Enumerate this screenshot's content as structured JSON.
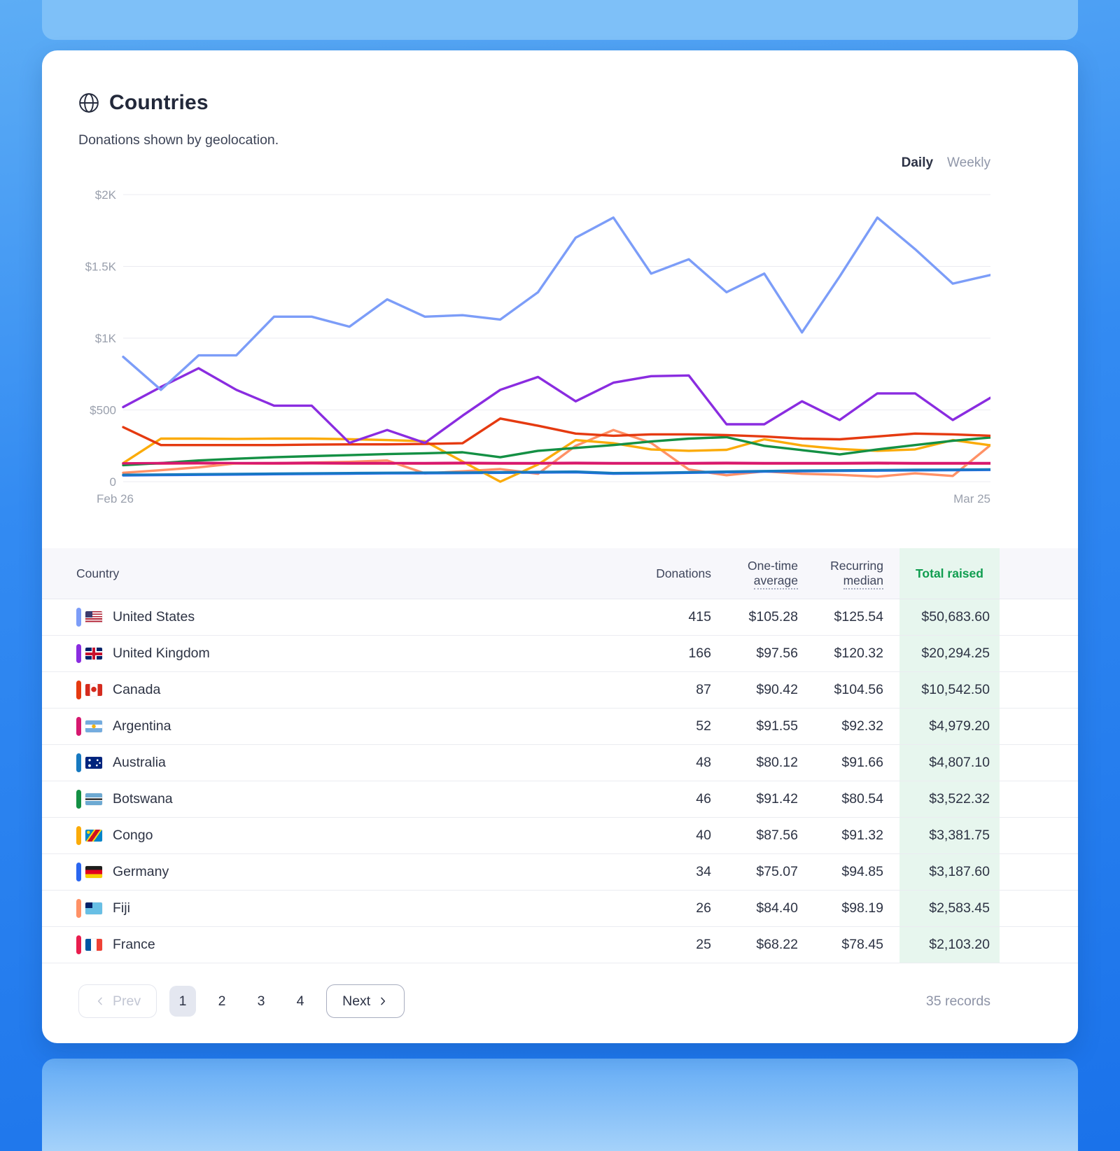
{
  "header": {
    "title": "Countries",
    "subtitle": "Donations shown by geolocation.",
    "icon": "globe-icon"
  },
  "toggle": {
    "daily": "Daily",
    "weekly": "Weekly",
    "selected": "Daily"
  },
  "chart_data": {
    "type": "line",
    "title": "Donations by country over time",
    "x_start_label": "Feb 26",
    "x_end_label": "Mar 25",
    "ymax": 2000,
    "grid": "horizontal",
    "legend_position": "none",
    "y_ticks": [
      {
        "v": 2000,
        "label": "$2K"
      },
      {
        "v": 1500,
        "label": "$1.5K"
      },
      {
        "v": 1000,
        "label": "$1K"
      },
      {
        "v": 500,
        "label": "$500"
      },
      {
        "v": 0,
        "label": "0"
      }
    ],
    "series": [
      {
        "name": "United States",
        "color": "#7c9df8",
        "values": [
          870,
          640,
          880,
          880,
          1150,
          1150,
          1080,
          1270,
          1150,
          1160,
          1130,
          1320,
          1700,
          1840,
          1450,
          1550,
          1320,
          1450,
          1040,
          1430,
          1840,
          1620,
          1380,
          1440
        ]
      },
      {
        "name": "United Kingdom",
        "color": "#8a2ce0",
        "values": [
          520,
          660,
          790,
          640,
          530,
          530,
          270,
          360,
          270,
          460,
          640,
          730,
          560,
          690,
          735,
          740,
          400,
          400,
          560,
          430,
          615,
          615,
          430,
          585
        ]
      },
      {
        "name": "Canada",
        "color": "#e53a10",
        "values": [
          380,
          255,
          255,
          255,
          255,
          258,
          260,
          260,
          263,
          268,
          440,
          390,
          335,
          320,
          330,
          330,
          325,
          315,
          300,
          295,
          315,
          335,
          330,
          320
        ]
      },
      {
        "name": "Argentina",
        "color": "#d6186f",
        "values": [
          128,
          130,
          131,
          130,
          130,
          131,
          130,
          130,
          130,
          131,
          130,
          130,
          131,
          130,
          130,
          130,
          131,
          130,
          130,
          130,
          131,
          130,
          130,
          130
        ]
      },
      {
        "name": "Australia",
        "color": "#1779c0",
        "values": [
          48,
          50,
          52,
          54,
          56,
          58,
          60,
          62,
          63,
          64,
          66,
          68,
          70,
          60,
          62,
          66,
          70,
          74,
          77,
          79,
          81,
          83,
          84,
          86
        ]
      },
      {
        "name": "Botswana",
        "color": "#149044",
        "values": [
          115,
          130,
          148,
          160,
          170,
          178,
          185,
          192,
          198,
          205,
          170,
          215,
          235,
          255,
          280,
          300,
          310,
          250,
          220,
          190,
          225,
          255,
          285,
          308
        ]
      },
      {
        "name": "Congo",
        "color": "#fbab09",
        "values": [
          130,
          300,
          300,
          298,
          300,
          300,
          296,
          290,
          282,
          140,
          0,
          120,
          290,
          268,
          225,
          215,
          222,
          295,
          252,
          228,
          215,
          225,
          290,
          253
        ]
      },
      {
        "name": "Germany",
        "color": "#2a66f0",
        "values": [
          44,
          46,
          48,
          50,
          52,
          54,
          56,
          58,
          59,
          60,
          62,
          64,
          66,
          56,
          58,
          62,
          66,
          70,
          73,
          75,
          77,
          79,
          80,
          82
        ]
      },
      {
        "name": "Fiji",
        "color": "#ff9166",
        "values": [
          62,
          80,
          100,
          128,
          130,
          133,
          138,
          148,
          58,
          72,
          88,
          55,
          250,
          360,
          270,
          85,
          45,
          72,
          55,
          48,
          35,
          58,
          40,
          255
        ]
      },
      {
        "name": "France",
        "color": "#e91d4e",
        "values": [
          125,
          127,
          128,
          127,
          127,
          128,
          127,
          127,
          127,
          128,
          127,
          127,
          128,
          127,
          127,
          127,
          128,
          127,
          127,
          127,
          128,
          127,
          127,
          127
        ]
      }
    ]
  },
  "table": {
    "columns": {
      "country": "Country",
      "donations": "Donations",
      "one_time_1": "One-time",
      "one_time_2": "average",
      "recurring_1": "Recurring",
      "recurring_2": "median",
      "total": "Total raised"
    },
    "rows": [
      {
        "flag": "us",
        "country": "United States",
        "color": "#7c9df8",
        "donations": "415",
        "one_time_avg": "$105.28",
        "recurring_median": "$125.54",
        "total_raised": "$50,683.60"
      },
      {
        "flag": "gb",
        "country": "United Kingdom",
        "color": "#8a2ce0",
        "donations": "166",
        "one_time_avg": "$97.56",
        "recurring_median": "$120.32",
        "total_raised": "$20,294.25"
      },
      {
        "flag": "ca",
        "country": "Canada",
        "color": "#e53a10",
        "donations": "87",
        "one_time_avg": "$90.42",
        "recurring_median": "$104.56",
        "total_raised": "$10,542.50"
      },
      {
        "flag": "ar",
        "country": "Argentina",
        "color": "#d6186f",
        "donations": "52",
        "one_time_avg": "$91.55",
        "recurring_median": "$92.32",
        "total_raised": "$4,979.20"
      },
      {
        "flag": "au",
        "country": "Australia",
        "color": "#1779c0",
        "donations": "48",
        "one_time_avg": "$80.12",
        "recurring_median": "$91.66",
        "total_raised": "$4,807.10"
      },
      {
        "flag": "bw",
        "country": "Botswana",
        "color": "#149044",
        "donations": "46",
        "one_time_avg": "$91.42",
        "recurring_median": "$80.54",
        "total_raised": "$3,522.32"
      },
      {
        "flag": "cd",
        "country": "Congo",
        "color": "#fbab09",
        "donations": "40",
        "one_time_avg": "$87.56",
        "recurring_median": "$91.32",
        "total_raised": "$3,381.75"
      },
      {
        "flag": "de",
        "country": "Germany",
        "color": "#2a66f0",
        "donations": "34",
        "one_time_avg": "$75.07",
        "recurring_median": "$94.85",
        "total_raised": "$3,187.60"
      },
      {
        "flag": "fj",
        "country": "Fiji",
        "color": "#ff9166",
        "donations": "26",
        "one_time_avg": "$84.40",
        "recurring_median": "$98.19",
        "total_raised": "$2,583.45"
      },
      {
        "flag": "fr",
        "country": "France",
        "color": "#e91d4e",
        "donations": "25",
        "one_time_avg": "$68.22",
        "recurring_median": "$78.45",
        "total_raised": "$2,103.20"
      }
    ]
  },
  "pagination": {
    "prev": "Prev",
    "next": "Next",
    "pages": [
      "1",
      "2",
      "3",
      "4"
    ],
    "active_page": "1",
    "records": "35 records"
  }
}
